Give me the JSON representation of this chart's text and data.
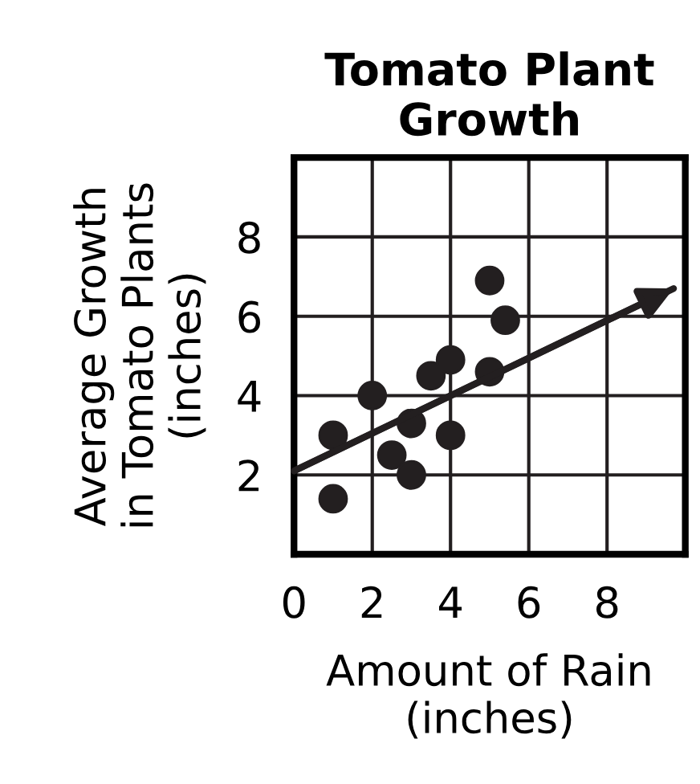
{
  "chart_data": {
    "type": "scatter",
    "title": "Tomato Plant\nGrowth",
    "xlabel": "Amount of Rain\n(inches)",
    "ylabel": "Average Growth\nin Tomato Plants\n(inches)",
    "series": [
      {
        "color": "#231f20",
        "marker": "circle",
        "x": [
          1,
          1,
          2,
          2.5,
          3,
          3,
          3.5,
          4,
          4,
          5,
          5,
          5.4
        ],
        "values": [
          1.4,
          3.0,
          4.0,
          2.5,
          3.3,
          2.0,
          4.5,
          4.9,
          3.0,
          6.9,
          4.6,
          5.9
        ]
      },
      {
        "type": "line",
        "marker": "none",
        "color": "#231f20",
        "x": [
          0,
          9.7
        ],
        "values": [
          2.1,
          6.7
        ]
      }
    ],
    "xlim": [
      0,
      10
    ],
    "ylim": [
      0,
      10
    ],
    "xticks": [
      0,
      2,
      4,
      6,
      8
    ],
    "yticks": [
      2,
      4,
      6,
      8
    ],
    "grid": true
  }
}
